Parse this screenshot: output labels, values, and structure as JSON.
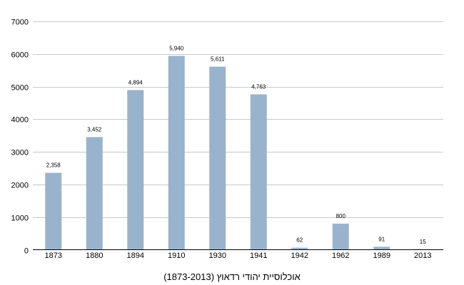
{
  "chart_data": {
    "type": "bar",
    "title": "אוכלוסיית יהודי רדאוץ (1873-2013)",
    "categories": [
      "1873",
      "1880",
      "1894",
      "1910",
      "1930",
      "1941",
      "1942",
      "1962",
      "1989",
      "2013"
    ],
    "values": [
      2358,
      3452,
      4894,
      5940,
      5611,
      4763,
      62,
      800,
      91,
      15
    ],
    "data_labels": [
      "2,358",
      "3,452",
      "4,894",
      "5,940",
      "5,611",
      "4,763",
      "62",
      "800",
      "91",
      "15"
    ],
    "y_ticks": [
      "0",
      "1000",
      "2000",
      "3000",
      "4000",
      "5000",
      "6000",
      "7000"
    ],
    "ylim": [
      0,
      7000
    ],
    "grid": true,
    "bar_color": "#9ab3cc",
    "grid_color": "#c8c8c8"
  }
}
